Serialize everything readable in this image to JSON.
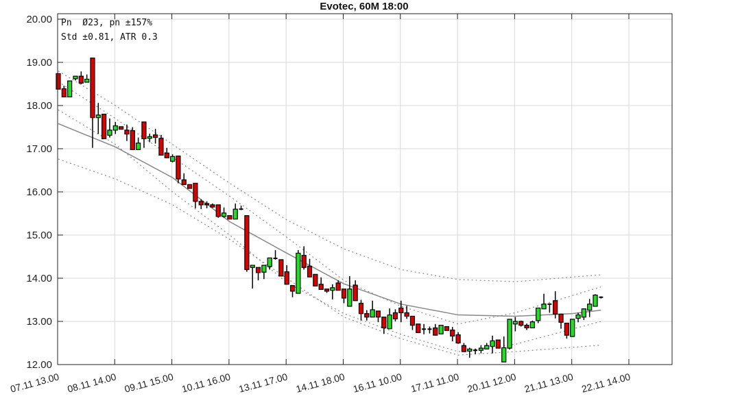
{
  "chart_data": {
    "type": "candlestick",
    "title": "Evotec, 60M 18:00",
    "annotations": [
      "Pn  Ø23, pn ±157%",
      "Std ±0.81, ATR 0.3"
    ],
    "ylim": [
      12,
      20
    ],
    "yticks": [
      "12.00",
      "13.00",
      "14.00",
      "15.00",
      "16.00",
      "17.00",
      "18.00",
      "19.00",
      "20.00"
    ],
    "xticks": [
      "07.11 13.00",
      "08.11 14.00",
      "09.11 15.00",
      "10.11 16.00",
      "13.11 17.00",
      "14.11 18.00",
      "16.11 10.00",
      "17.11 11.00",
      "20.11 12.00",
      "21.11 13.00",
      "22.11 14.00"
    ],
    "bars_per_xtick": 10,
    "grid": true,
    "colors": {
      "up": "#22dd22",
      "down": "#dd0000",
      "regression": "#888888",
      "bands": "#888888"
    },
    "ohlc": [
      [
        18.74,
        18.74,
        18.38,
        18.38
      ],
      [
        18.39,
        18.46,
        18.2,
        18.2
      ],
      [
        18.2,
        18.57,
        18.2,
        18.57
      ],
      [
        18.62,
        18.68,
        18.58,
        18.68
      ],
      [
        18.68,
        18.79,
        18.49,
        18.52
      ],
      [
        18.54,
        18.72,
        18.54,
        18.61
      ],
      [
        19.1,
        19.1,
        17.02,
        17.72
      ],
      [
        17.72,
        18.06,
        17.34,
        17.78
      ],
      [
        17.8,
        17.8,
        17.23,
        17.23
      ],
      [
        17.31,
        17.7,
        17.26,
        17.43
      ],
      [
        17.43,
        17.62,
        17.34,
        17.53
      ],
      [
        17.51,
        17.51,
        17.45,
        17.45
      ],
      [
        17.43,
        17.56,
        17.18,
        17.34
      ],
      [
        17.42,
        17.5,
        16.98,
        16.98
      ],
      [
        16.98,
        17.26,
        16.98,
        17.13
      ],
      [
        17.62,
        17.62,
        17.02,
        17.23
      ],
      [
        17.24,
        17.35,
        17.15,
        17.28
      ],
      [
        17.32,
        17.46,
        17.12,
        17.26
      ],
      [
        17.24,
        17.32,
        16.85,
        16.85
      ],
      [
        16.9,
        17.02,
        16.79,
        16.79
      ],
      [
        16.71,
        16.87,
        16.68,
        16.82
      ],
      [
        16.83,
        16.83,
        16.2,
        16.3
      ],
      [
        16.28,
        16.43,
        16.17,
        16.17
      ],
      [
        16.17,
        16.17,
        16.08,
        16.08
      ],
      [
        16.2,
        16.2,
        15.62,
        15.78
      ],
      [
        15.78,
        15.83,
        15.6,
        15.7
      ],
      [
        15.73,
        15.78,
        15.62,
        15.7
      ],
      [
        15.7,
        15.73,
        15.63,
        15.65
      ],
      [
        15.7,
        15.7,
        15.4,
        15.43
      ],
      [
        15.43,
        15.64,
        15.4,
        15.51
      ],
      [
        15.45,
        15.45,
        15.37,
        15.37
      ],
      [
        15.37,
        15.73,
        15.37,
        15.6
      ],
      [
        15.6,
        15.68,
        15.58,
        15.6
      ],
      [
        15.45,
        15.45,
        14.15,
        14.2
      ],
      [
        14.25,
        14.3,
        13.76,
        14.3
      ],
      [
        14.25,
        14.25,
        13.95,
        14.13
      ],
      [
        14.14,
        14.3,
        13.98,
        14.3
      ],
      [
        14.27,
        14.47,
        14.2,
        14.47
      ],
      [
        14.46,
        14.65,
        14.43,
        14.46
      ],
      [
        14.43,
        14.43,
        14.05,
        14.05
      ],
      [
        14.15,
        14.3,
        13.86,
        13.86
      ],
      [
        13.83,
        13.83,
        13.56,
        13.7
      ],
      [
        13.65,
        14.65,
        13.65,
        14.58
      ],
      [
        14.53,
        14.74,
        14.2,
        14.25
      ],
      [
        14.28,
        14.45,
        14.03,
        14.03
      ],
      [
        14.09,
        14.09,
        13.82,
        13.82
      ],
      [
        13.86,
        14.02,
        13.74,
        13.74
      ],
      [
        13.75,
        13.75,
        13.66,
        13.7
      ],
      [
        13.72,
        13.86,
        13.51,
        13.78
      ],
      [
        13.89,
        13.95,
        13.72,
        13.72
      ],
      [
        13.75,
        13.75,
        13.42,
        13.54
      ],
      [
        13.35,
        14.05,
        13.35,
        13.75
      ],
      [
        13.84,
        13.95,
        13.48,
        13.48
      ],
      [
        13.42,
        13.5,
        13.02,
        13.18
      ],
      [
        13.18,
        13.26,
        13.02,
        13.1
      ],
      [
        13.1,
        13.48,
        13.1,
        13.27
      ],
      [
        13.24,
        13.24,
        12.98,
        13.1
      ],
      [
        13.1,
        13.1,
        12.71,
        12.85
      ],
      [
        12.83,
        13.3,
        12.83,
        13.15
      ],
      [
        13.2,
        13.28,
        13.0,
        13.06
      ],
      [
        13.31,
        13.48,
        12.98,
        13.2
      ],
      [
        13.2,
        13.36,
        13.06,
        13.12
      ],
      [
        13.12,
        13.12,
        12.8,
        12.91
      ],
      [
        12.94,
        12.94,
        12.74,
        12.74
      ],
      [
        12.82,
        12.94,
        12.7,
        12.82
      ],
      [
        12.82,
        12.88,
        12.72,
        12.82
      ],
      [
        12.85,
        12.94,
        12.68,
        12.68
      ],
      [
        12.71,
        12.91,
        12.71,
        12.91
      ],
      [
        12.88,
        12.88,
        12.79,
        12.79
      ],
      [
        12.8,
        12.87,
        12.54,
        12.66
      ],
      [
        12.69,
        12.75,
        12.48,
        12.5
      ],
      [
        12.44,
        12.5,
        12.3,
        12.3
      ],
      [
        12.31,
        12.39,
        12.16,
        12.36
      ],
      [
        12.33,
        12.37,
        12.24,
        12.33
      ],
      [
        12.33,
        12.45,
        12.26,
        12.38
      ],
      [
        12.36,
        12.5,
        12.36,
        12.44
      ],
      [
        12.42,
        12.67,
        12.26,
        12.55
      ],
      [
        12.57,
        12.57,
        12.38,
        12.38
      ],
      [
        12.06,
        12.65,
        12.06,
        12.39
      ],
      [
        12.38,
        13.05,
        12.35,
        13.05
      ],
      [
        12.94,
        13.1,
        12.77,
        13.0
      ],
      [
        13.0,
        13.02,
        12.88,
        12.91
      ],
      [
        12.91,
        12.95,
        12.8,
        12.85
      ],
      [
        12.85,
        13.02,
        12.85,
        12.99
      ],
      [
        13.02,
        13.31,
        12.96,
        13.31
      ],
      [
        13.29,
        13.64,
        13.29,
        13.4
      ],
      [
        13.4,
        13.42,
        13.2,
        13.4
      ],
      [
        13.48,
        13.7,
        13.07,
        13.17
      ],
      [
        13.17,
        13.17,
        12.83,
        12.98
      ],
      [
        12.96,
        12.96,
        12.6,
        12.68
      ],
      [
        12.65,
        13.05,
        12.65,
        13.05
      ],
      [
        13.07,
        13.2,
        12.98,
        13.15
      ],
      [
        13.1,
        13.3,
        13.03,
        13.29
      ],
      [
        13.26,
        13.52,
        13.1,
        13.4
      ],
      [
        13.35,
        13.63,
        13.35,
        13.61
      ],
      [
        13.56,
        13.58,
        13.53,
        13.56
      ]
    ],
    "regression": [
      [
        0,
        17.58
      ],
      [
        10,
        17.04
      ],
      [
        20,
        16.33
      ],
      [
        30,
        15.31
      ],
      [
        40,
        14.58
      ],
      [
        50,
        13.87
      ],
      [
        60,
        13.4
      ],
      [
        70,
        13.15
      ],
      [
        80,
        13.12
      ],
      [
        90,
        13.18
      ],
      [
        95,
        13.26
      ]
    ],
    "bands": [
      [
        [
          0,
          18.8
        ],
        [
          10,
          18.0
        ],
        [
          20,
          17.1
        ],
        [
          30,
          16.2
        ],
        [
          40,
          15.35
        ],
        [
          50,
          14.68
        ],
        [
          60,
          14.2
        ],
        [
          70,
          13.97
        ],
        [
          80,
          13.92
        ],
        [
          95,
          14.08
        ]
      ],
      [
        [
          0,
          18.55
        ],
        [
          10,
          17.7
        ],
        [
          20,
          16.8
        ],
        [
          30,
          15.9
        ],
        [
          40,
          14.95
        ],
        [
          50,
          13.95
        ],
        [
          60,
          13.35
        ],
        [
          70,
          12.94
        ],
        [
          80,
          13.2
        ],
        [
          95,
          13.8
        ]
      ],
      [
        [
          0,
          17.9
        ],
        [
          10,
          17.1
        ],
        [
          20,
          16.0
        ],
        [
          30,
          15.0
        ],
        [
          40,
          13.9
        ],
        [
          50,
          13.18
        ],
        [
          60,
          12.7
        ],
        [
          70,
          12.3
        ],
        [
          80,
          12.47
        ],
        [
          95,
          13.0
        ]
      ],
      [
        [
          0,
          16.76
        ],
        [
          10,
          16.3
        ],
        [
          20,
          15.7
        ],
        [
          30,
          14.9
        ],
        [
          40,
          14.0
        ],
        [
          50,
          13.1
        ],
        [
          60,
          12.6
        ],
        [
          70,
          12.22
        ],
        [
          80,
          12.3
        ],
        [
          95,
          12.45
        ]
      ]
    ]
  }
}
